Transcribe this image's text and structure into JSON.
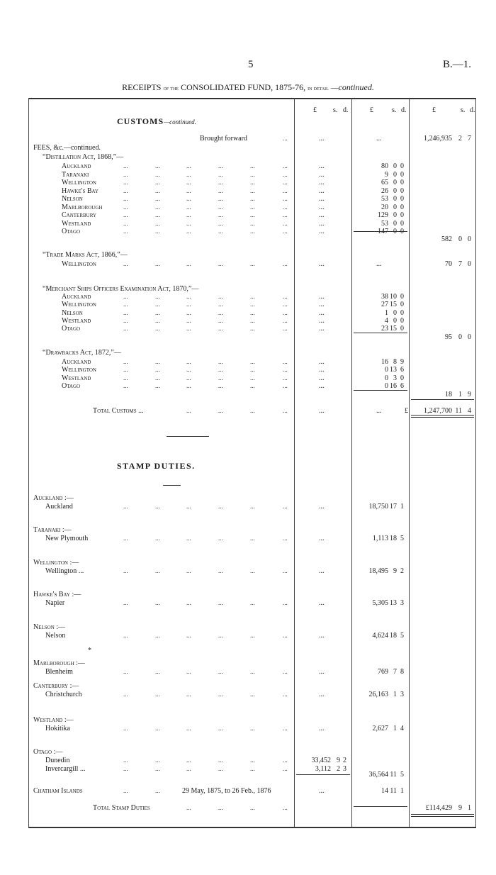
{
  "page": {
    "number": "5",
    "reference": "B.—1.",
    "title_main": "RECEIPTS",
    "title_of_the": "of the",
    "title_fund": "CONSOLIDATED FUND, 1875-76,",
    "title_in_detail": "in detail",
    "title_continued": "—continued."
  },
  "columns": {
    "pound": "£",
    "shillings": "s.",
    "pence": "d."
  },
  "customs": {
    "heading": "CUSTOMS",
    "heading_suffix": "—continued.",
    "brought_forward": {
      "label": "Brought forward",
      "col1": "...",
      "col2": "...",
      "col3": [
        "1,246,935",
        "2",
        "7"
      ]
    },
    "fees_heading": "FEES, &c.—continued.",
    "groups": [
      {
        "title": "“Distillation Act, 1868,”—",
        "items": [
          {
            "label": "Auckland",
            "col2": [
              "80",
              "0",
              "0"
            ]
          },
          {
            "label": "Taranaki",
            "col2": [
              "9",
              "0",
              "0"
            ]
          },
          {
            "label": "Wellington",
            "col2": [
              "65",
              "0",
              "0"
            ]
          },
          {
            "label": "Hawke's Bay",
            "col2": [
              "26",
              "0",
              "0"
            ]
          },
          {
            "label": "Nelson",
            "col2": [
              "53",
              "0",
              "0"
            ]
          },
          {
            "label": "Marlborough",
            "col2": [
              "20",
              "0",
              "0"
            ]
          },
          {
            "label": "Canterbury",
            "col2": [
              "129",
              "0",
              "0"
            ]
          },
          {
            "label": "Westland",
            "col2": [
              "53",
              "0",
              "0"
            ]
          },
          {
            "label": "Otago",
            "col2": [
              "147",
              "0",
              "0"
            ]
          }
        ],
        "total": [
          "582",
          "0",
          "0"
        ]
      },
      {
        "title": "“Trade Marks Act, 1866,”—",
        "items": [
          {
            "label": "Wellington",
            "col2": "...",
            "col3": [
              "70",
              "7",
              "0"
            ]
          }
        ]
      },
      {
        "title": "“Merchant Ships Officers Examination Act, 1870,”—",
        "items": [
          {
            "label": "Auckland",
            "col2": [
              "38",
              "10",
              "0"
            ]
          },
          {
            "label": "Wellington",
            "col2": [
              "27",
              "15",
              "0"
            ]
          },
          {
            "label": "Nelson",
            "col2": [
              "1",
              "0",
              "0"
            ]
          },
          {
            "label": "Westland",
            "col2": [
              "4",
              "0",
              "0"
            ]
          },
          {
            "label": "Otago",
            "col2": [
              "23",
              "15",
              "0"
            ]
          }
        ],
        "total": [
          "95",
          "0",
          "0"
        ]
      },
      {
        "title": "“Drawbacks Act, 1872,”—",
        "items": [
          {
            "label": "Auckland",
            "col2": [
              "16",
              "8",
              "9"
            ]
          },
          {
            "label": "Wellington",
            "col2": [
              "0",
              "13",
              "6"
            ]
          },
          {
            "label": "Westland",
            "col2": [
              "0",
              "3",
              "0"
            ]
          },
          {
            "label": "Otago",
            "col2": [
              "0",
              "16",
              "6"
            ]
          }
        ],
        "total": [
          "18",
          "1",
          "9"
        ]
      }
    ],
    "total": {
      "label": "Total Customs ...",
      "col1": "...",
      "col2": "...",
      "currency": "£",
      "col3": [
        "1,247,700",
        "11",
        "4"
      ]
    }
  },
  "stamp_duties": {
    "heading": "STAMP DUTIES.",
    "regions": [
      {
        "region": "Auckland :—",
        "places": [
          {
            "label": "Auckland",
            "col2": [
              "18,750",
              "17",
              "1"
            ]
          }
        ]
      },
      {
        "region": "Taranaki :—",
        "places": [
          {
            "label": "New Plymouth",
            "col2": [
              "1,113",
              "18",
              "5"
            ]
          }
        ]
      },
      {
        "region": "Wellington :—",
        "places": [
          {
            "label": "Wellington ...",
            "col2": [
              "18,495",
              "9",
              "2"
            ]
          }
        ]
      },
      {
        "region": "Hawke's Bay :—",
        "places": [
          {
            "label": "Napier",
            "col2": [
              "5,305",
              "13",
              "3"
            ]
          }
        ]
      },
      {
        "region": "Nelson :—",
        "places": [
          {
            "label": "Nelson",
            "col2": [
              "4,624",
              "18",
              "5"
            ]
          }
        ]
      },
      {
        "region": "Marlborough :—",
        "places": [
          {
            "label": "Blenheim",
            "col2": [
              "769",
              "7",
              "8"
            ]
          }
        ]
      },
      {
        "region": "Canterbury :—",
        "places": [
          {
            "label": "Christchurch",
            "col2": [
              "26,163",
              "1",
              "3"
            ]
          }
        ]
      },
      {
        "region": "Westland :—",
        "places": [
          {
            "label": "Hokitika",
            "col2": [
              "2,627",
              "1",
              "4"
            ]
          }
        ]
      },
      {
        "region": "Otago :—",
        "places": [
          {
            "label": "Dunedin",
            "col1": [
              "33,452",
              "9",
              "2"
            ]
          },
          {
            "label": "Invercargill ...",
            "col1": [
              "3,112",
              "2",
              "3"
            ]
          }
        ],
        "total": [
          "36,564",
          "11",
          "5"
        ]
      }
    ],
    "chatham": {
      "label": "Chatham Islands",
      "period": "29 May, 1875, to 26 Feb., 1876",
      "col1": "...",
      "col2": [
        "14",
        "11",
        "1"
      ]
    },
    "total": {
      "label": "Total Stamp Duties",
      "col3": [
        "£114,429",
        "9",
        "1"
      ]
    }
  }
}
